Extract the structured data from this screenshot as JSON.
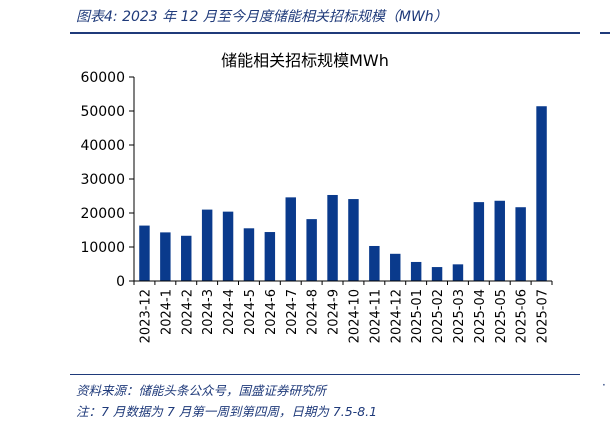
{
  "figure": {
    "caption": "图表4:  2023 年 12 月至今月度储能相关招标规模（MWh）",
    "source": "资料来源：储能头条公众号，国盛证券研究所",
    "note": "注：7 月数据为 7 月第一周到第四周，日期为 7.5-8.1",
    "edge_mark": "·"
  },
  "colors": {
    "bar": "#0a3a8c",
    "accent": "#1f3a7a"
  },
  "chart_data": {
    "type": "bar",
    "title": "储能相关招标规模MWh",
    "categories": [
      "2023-12",
      "2024-1",
      "2024-2",
      "2024-3",
      "2024-4",
      "2024-5",
      "2024-6",
      "2024-7",
      "2024-8",
      "2024-9",
      "2024-10",
      "2024-11",
      "2024-12",
      "2025-01",
      "2025-02",
      "2025-03",
      "2025-04",
      "2025-05",
      "2025-06",
      "2025-07"
    ],
    "values": [
      16300,
      14300,
      13300,
      21000,
      20400,
      15500,
      14400,
      24600,
      18200,
      25300,
      24100,
      10300,
      8000,
      5600,
      4100,
      4900,
      23200,
      23600,
      21700,
      51400
    ],
    "yticks": [
      0,
      10000,
      20000,
      30000,
      40000,
      50000,
      60000
    ],
    "ylim": [
      0,
      60000
    ],
    "grid": false,
    "legend": "none"
  }
}
